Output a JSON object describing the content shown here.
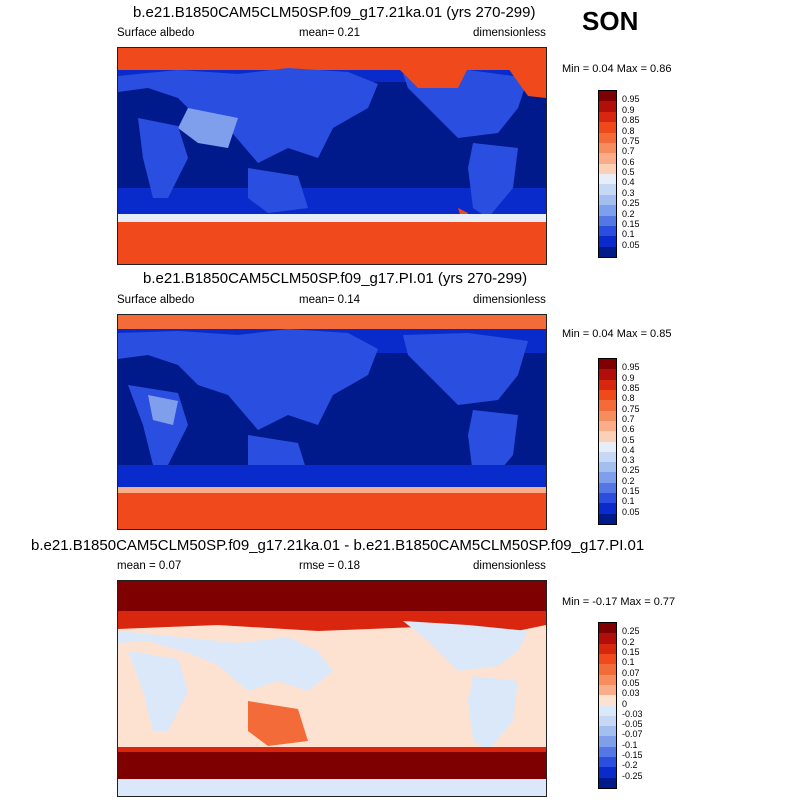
{
  "season": "SON",
  "panels": [
    {
      "title": "b.e21.B1850CAM5CLM50SP.f09_g17.21ka.01 (yrs 270-299)",
      "left_label": "Surface albedo",
      "center_label": "mean=   0.21",
      "right_label": "dimensionless",
      "minmax": "Min =   0.04 Max =   0.86"
    },
    {
      "title": "b.e21.B1850CAM5CLM50SP.f09_g17.PI.01 (yrs 270-299)",
      "left_label": "Surface albedo",
      "center_label": "mean=   0.14",
      "right_label": "dimensionless",
      "minmax": "Min =   0.04 Max =   0.85"
    },
    {
      "title": "b.e21.B1850CAM5CLM50SP.f09_g17.21ka.01 - b.e21.B1850CAM5CLM50SP.f09_g17.PI.01",
      "left_label": "mean =   0.07",
      "center_label": "rmse =   0.18",
      "right_label": "dimensionless",
      "minmax": "Min =  -0.17 Max =   0.77"
    }
  ],
  "albedo_scale": {
    "labels": [
      "0.95",
      "0.9",
      "0.85",
      "0.8",
      "0.75",
      "0.7",
      "0.6",
      "0.5",
      "0.4",
      "0.3",
      "0.25",
      "0.2",
      "0.15",
      "0.1",
      "0.05"
    ],
    "colors": [
      "#7f0000",
      "#b30f0a",
      "#d9260f",
      "#f04a1c",
      "#f46b3a",
      "#f78c5e",
      "#f9ae89",
      "#fcd0b7",
      "#e8eef8",
      "#c6d8f3",
      "#a3bff0",
      "#7f9fec",
      "#5577e6",
      "#2a4fe0",
      "#0a2bcb",
      "#001a8c"
    ]
  },
  "diff_scale": {
    "labels": [
      "0.25",
      "0.2",
      "0.15",
      "0.1",
      "0.07",
      "0.05",
      "0.03",
      "0",
      "-0.03",
      "-0.05",
      "-0.07",
      "-0.1",
      "-0.15",
      "-0.2",
      "-0.25"
    ],
    "colors": [
      "#7f0000",
      "#b30f0a",
      "#d9260f",
      "#f04a1c",
      "#f46b3a",
      "#f78c5e",
      "#f9ae89",
      "#fde2d2",
      "#dae8fa",
      "#c6d8f3",
      "#a3bff0",
      "#7f9fec",
      "#5577e6",
      "#2a4fe0",
      "#0a2bcb",
      "#001a8c"
    ]
  },
  "map_colors": {
    "ocean_deep": "#001a8c",
    "ocean_mid": "#0a2bcb",
    "land_blue": "#2a4fe0",
    "land_light": "#7f9fec",
    "ice_orange": "#f04a1c",
    "ice_light": "#f9ae89",
    "diff_zero": "#fde2d2",
    "diff_neg": "#dae8fa",
    "diff_high": "#7f0000",
    "diff_red": "#d9260f"
  }
}
